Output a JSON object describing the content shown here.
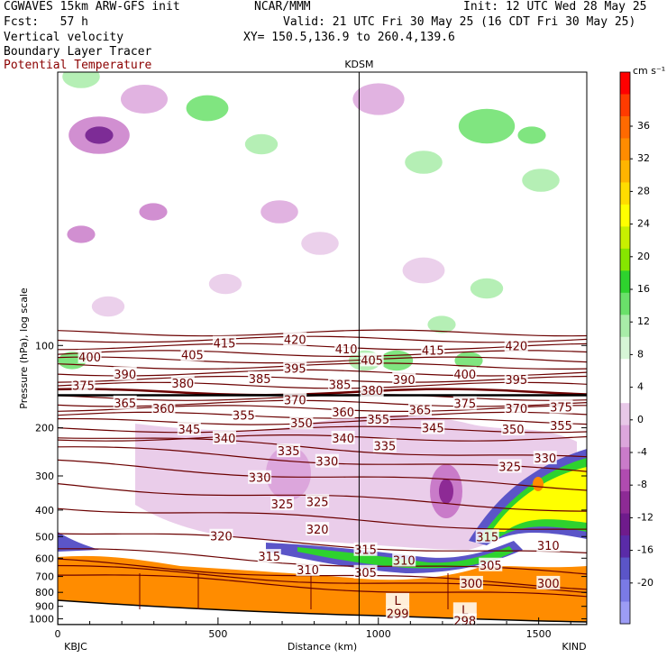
{
  "header": {
    "line1_left": "CGWAVES 15km ARW-GFS init",
    "line1_mid": "NCAR/MMM",
    "line1_right": "Init: 12 UTC Wed 28 May 25",
    "line2_left": "Fcst:   57 h",
    "line2_right": "Valid: 21 UTC Fri 30 May 25 (16 CDT Fri 30 May 25)",
    "line3_left": "Vertical velocity",
    "line3_right": "XY= 150.5,136.9 to 260.4,139.6",
    "line4_left": "Boundary Layer Tracer",
    "line5_left": "Potential Temperature",
    "line5_color": "#8b0000"
  },
  "chart_data": {
    "type": "heatmap",
    "title": "",
    "xlabel": "Distance (km)",
    "ylabel": "Pressure (hPa), log scale",
    "y_scale": "log",
    "xlim": [
      0,
      1650
    ],
    "ylim": [
      1050,
      10
    ],
    "x_ticks": [
      0,
      500,
      1000,
      1500
    ],
    "y_ticks": [
      100,
      200,
      300,
      400,
      500,
      600,
      700,
      800,
      900,
      1000
    ],
    "station_left": "KBJC",
    "station_right": "KIND",
    "station_mid": "KDSM",
    "station_mid_x_km": 940,
    "colorbar": {
      "unit": "cm s⁻¹",
      "labels": [
        "36",
        "32",
        "28",
        "24",
        "20",
        "16",
        "12",
        "8",
        "4",
        "0",
        "-4",
        "-8",
        "-12",
        "-16",
        "-20"
      ],
      "colors": [
        "#ff0000",
        "#ff3b00",
        "#ff6a00",
        "#ff8c00",
        "#ffb400",
        "#ffdc00",
        "#ffff00",
        "#c8f000",
        "#86e600",
        "#2ed22e",
        "#6ae06a",
        "#a8eca8",
        "#d6f6d6",
        "#ffffff",
        "#ffffff",
        "#e8c8e8",
        "#dca6dc",
        "#c97bc9",
        "#b04bb0",
        "#8d2a95",
        "#6f1b8c",
        "#5a2ba8",
        "#5b55c8",
        "#7a7ae6",
        "#9c9cf5"
      ]
    },
    "theta_contours_K": [
      {
        "value": 298,
        "label": "298"
      },
      {
        "value": 299,
        "label": "299"
      },
      {
        "value": 300,
        "label": "300"
      },
      {
        "value": 305,
        "label": "305"
      },
      {
        "value": 310,
        "label": "310"
      },
      {
        "value": 315,
        "label": "315"
      },
      {
        "value": 320,
        "label": "320"
      },
      {
        "value": 325,
        "label": "325"
      },
      {
        "value": 330,
        "label": "330"
      },
      {
        "value": 335,
        "label": "335"
      },
      {
        "value": 340,
        "label": "340"
      },
      {
        "value": 345,
        "label": "345"
      },
      {
        "value": 350,
        "label": "350"
      },
      {
        "value": 355,
        "label": "355"
      },
      {
        "value": 360,
        "label": "360"
      },
      {
        "value": 365,
        "label": "365"
      },
      {
        "value": 370,
        "label": "370"
      },
      {
        "value": 375,
        "label": "375"
      },
      {
        "value": 380,
        "label": "380"
      },
      {
        "value": 385,
        "label": "385"
      },
      {
        "value": 390,
        "label": "390"
      },
      {
        "value": 395,
        "label": "395"
      },
      {
        "value": 400,
        "label": "400"
      },
      {
        "value": 405,
        "label": "405"
      },
      {
        "value": 410,
        "label": "410"
      },
      {
        "value": 415,
        "label": "415"
      },
      {
        "value": 420,
        "label": "420"
      }
    ],
    "theta_label_positions": [
      {
        "label": "400",
        "x": 100,
        "p": 110
      },
      {
        "label": "405",
        "x": 420,
        "p": 108
      },
      {
        "label": "415",
        "x": 520,
        "p": 98
      },
      {
        "label": "420",
        "x": 740,
        "p": 95
      },
      {
        "label": "410",
        "x": 900,
        "p": 103
      },
      {
        "label": "405",
        "x": 980,
        "p": 113
      },
      {
        "label": "415",
        "x": 1170,
        "p": 104
      },
      {
        "label": "420",
        "x": 1430,
        "p": 100
      },
      {
        "label": "375",
        "x": 80,
        "p": 140
      },
      {
        "label": "390",
        "x": 210,
        "p": 127
      },
      {
        "label": "380",
        "x": 390,
        "p": 137
      },
      {
        "label": "385",
        "x": 630,
        "p": 132
      },
      {
        "label": "395",
        "x": 740,
        "p": 121
      },
      {
        "label": "385",
        "x": 880,
        "p": 139
      },
      {
        "label": "390",
        "x": 1080,
        "p": 133
      },
      {
        "label": "400",
        "x": 1270,
        "p": 127
      },
      {
        "label": "395",
        "x": 1430,
        "p": 133
      },
      {
        "label": "380",
        "x": 980,
        "p": 146
      },
      {
        "label": "365",
        "x": 210,
        "p": 162
      },
      {
        "label": "360",
        "x": 330,
        "p": 170
      },
      {
        "label": "370",
        "x": 740,
        "p": 158
      },
      {
        "label": "360",
        "x": 890,
        "p": 175
      },
      {
        "label": "365",
        "x": 1130,
        "p": 172
      },
      {
        "label": "375",
        "x": 1270,
        "p": 163
      },
      {
        "label": "370",
        "x": 1430,
        "p": 170
      },
      {
        "label": "375",
        "x": 1570,
        "p": 168
      },
      {
        "label": "355",
        "x": 580,
        "p": 180
      },
      {
        "label": "350",
        "x": 760,
        "p": 192
      },
      {
        "label": "355",
        "x": 1000,
        "p": 186
      },
      {
        "label": "345",
        "x": 1170,
        "p": 200
      },
      {
        "label": "350",
        "x": 1420,
        "p": 202
      },
      {
        "label": "355",
        "x": 1570,
        "p": 196
      },
      {
        "label": "345",
        "x": 410,
        "p": 202
      },
      {
        "label": "340",
        "x": 520,
        "p": 218
      },
      {
        "label": "340",
        "x": 890,
        "p": 218
      },
      {
        "label": "335",
        "x": 1020,
        "p": 233
      },
      {
        "label": "335",
        "x": 720,
        "p": 243
      },
      {
        "label": "330",
        "x": 840,
        "p": 265
      },
      {
        "label": "325",
        "x": 1410,
        "p": 277
      },
      {
        "label": "330",
        "x": 1520,
        "p": 258
      },
      {
        "label": "330",
        "x": 630,
        "p": 304
      },
      {
        "label": "325",
        "x": 700,
        "p": 380
      },
      {
        "label": "325",
        "x": 810,
        "p": 372
      },
      {
        "label": "320",
        "x": 810,
        "p": 470
      },
      {
        "label": "320",
        "x": 510,
        "p": 498
      },
      {
        "label": "315",
        "x": 1340,
        "p": 500
      },
      {
        "label": "310",
        "x": 1530,
        "p": 538
      },
      {
        "label": "315",
        "x": 660,
        "p": 590
      },
      {
        "label": "315",
        "x": 960,
        "p": 558
      },
      {
        "label": "310",
        "x": 1080,
        "p": 610
      },
      {
        "label": "310",
        "x": 780,
        "p": 660
      },
      {
        "label": "305",
        "x": 960,
        "p": 675
      },
      {
        "label": "305",
        "x": 1350,
        "p": 635
      },
      {
        "label": "300",
        "x": 1290,
        "p": 740
      },
      {
        "label": "300",
        "x": 1530,
        "p": 740
      },
      {
        "label": "L",
        "x": 1060,
        "p": 855
      },
      {
        "label": "299",
        "x": 1060,
        "p": 955
      },
      {
        "label": "L",
        "x": 1270,
        "p": 925
      },
      {
        "label": "298",
        "x": 1270,
        "p": 1015
      }
    ],
    "boundary_layer_tracer": "filled orange below ~700–600 hPa across section, deeper near KBJC",
    "grid": false
  }
}
